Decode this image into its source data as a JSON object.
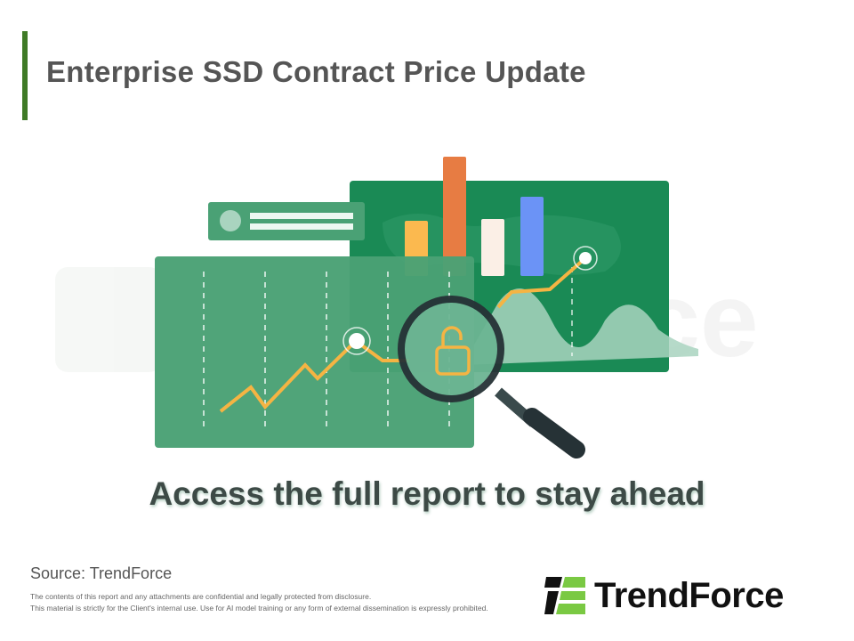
{
  "header": {
    "title": "Enterprise SSD Contract Price Update"
  },
  "illustration": {
    "watermark": "TrendForce",
    "icon": "unlocked-padlock-under-magnifier-icon",
    "colors": {
      "panel_dark": "#1a8a55",
      "panel_light": "#4aa175",
      "bar_yellow": "#fbb94f",
      "bar_orange": "#e77c43",
      "bar_cream": "#fbefe6",
      "bar_blue": "#6b93f6",
      "line": "#f5b443"
    }
  },
  "caption": "Access the full report to stay ahead",
  "footer": {
    "source": "Source: TrendForce",
    "disclaimer_1": "The contents of this report and any attachments are confidential and legally protected from disclosure.",
    "disclaimer_2": "This material is strictly for the Client's internal use. Use for AI model training or any form of external dissemination is expressly prohibited.",
    "logo_text": "TrendForce",
    "logo_color": "#7ac943"
  }
}
